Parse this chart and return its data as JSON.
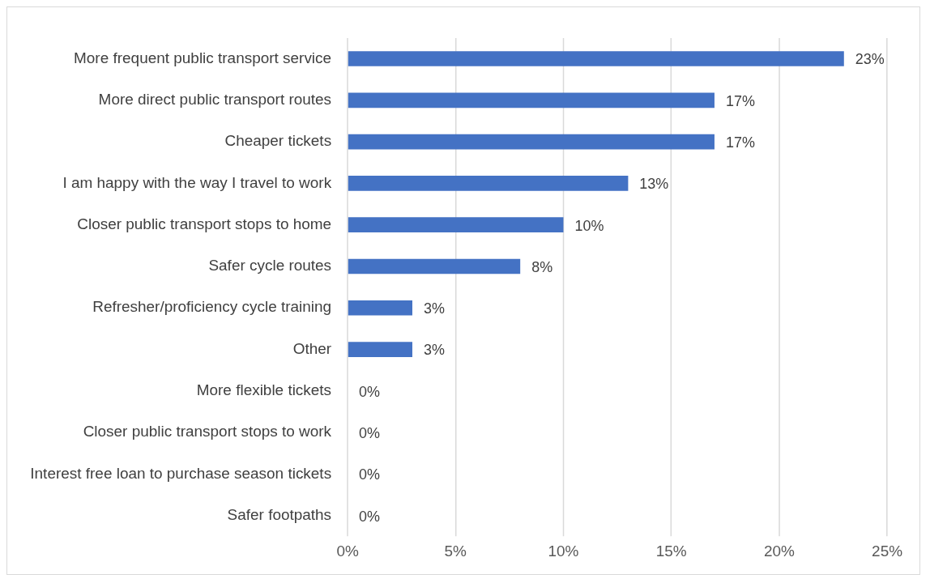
{
  "chart_data": {
    "type": "bar",
    "orientation": "horizontal",
    "categories": [
      "More frequent public transport service",
      "More direct public transport routes",
      "Cheaper tickets",
      "I am happy with the way I travel to work",
      "Closer public transport stops to home",
      "Safer cycle routes",
      "Refresher/proficiency cycle training",
      "Other",
      "More flexible tickets",
      "Closer public transport stops to work",
      "Interest free loan to purchase season tickets",
      "Safer footpaths"
    ],
    "values": [
      23,
      17,
      17,
      13,
      10,
      8,
      3,
      3,
      0,
      0,
      0,
      0
    ],
    "value_labels": [
      "23%",
      "17%",
      "17%",
      "13%",
      "10%",
      "8%",
      "3%",
      "3%",
      "0%",
      "0%",
      "0%",
      "0%"
    ],
    "color": "#4472c4",
    "xlim": [
      0,
      25
    ],
    "xticks": [
      {
        "value": 0,
        "label": "0%"
      },
      {
        "value": 5,
        "label": "5%"
      },
      {
        "value": 10,
        "label": "10%"
      },
      {
        "value": 15,
        "label": "15%"
      },
      {
        "value": 20,
        "label": "20%"
      },
      {
        "value": 25,
        "label": "25%"
      }
    ],
    "grid": "x",
    "legend": false
  }
}
